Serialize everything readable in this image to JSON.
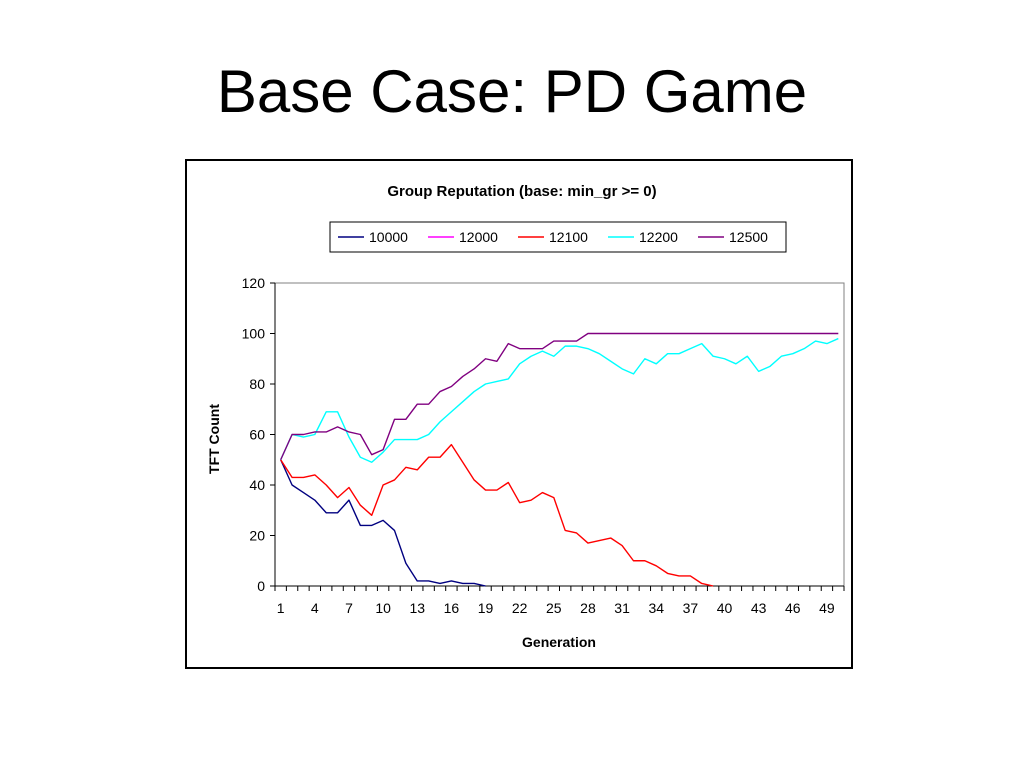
{
  "slide": {
    "title": "Base Case: PD Game"
  },
  "chart_data": {
    "type": "line",
    "title": "Group Reputation (base: min_gr >= 0)",
    "xlabel": "Generation",
    "ylabel": "TFT Count",
    "ylim": [
      0,
      120
    ],
    "yticks": [
      0,
      20,
      40,
      60,
      80,
      100,
      120
    ],
    "xlim": [
      1,
      50
    ],
    "xtick_labels": [
      "1",
      "4",
      "7",
      "10",
      "13",
      "16",
      "19",
      "22",
      "25",
      "28",
      "31",
      "34",
      "37",
      "40",
      "43",
      "46",
      "49"
    ],
    "legend_position": "top",
    "grid": false,
    "x": [
      1,
      2,
      3,
      4,
      5,
      6,
      7,
      8,
      9,
      10,
      11,
      12,
      13,
      14,
      15,
      16,
      17,
      18,
      19,
      20,
      21,
      22,
      23,
      24,
      25,
      26,
      27,
      28,
      29,
      30,
      31,
      32,
      33,
      34,
      35,
      36,
      37,
      38,
      39,
      40,
      41,
      42,
      43,
      44,
      45,
      46,
      47,
      48,
      49,
      50
    ],
    "series": [
      {
        "name": "10000",
        "color": "#000080",
        "values": [
          50,
          40,
          37,
          34,
          29,
          29,
          34,
          24,
          24,
          26,
          22,
          9,
          2,
          2,
          1,
          2,
          1,
          1,
          0,
          null,
          null,
          null,
          null,
          null,
          null,
          null,
          null,
          null,
          null,
          null,
          null,
          null,
          null,
          null,
          null,
          null,
          null,
          null,
          null,
          null,
          null,
          null,
          null,
          null,
          null,
          null,
          null,
          null,
          null,
          null
        ]
      },
      {
        "name": "12000",
        "color": "#FF00FF",
        "values": [
          50,
          null,
          null,
          null,
          null,
          null,
          null,
          null,
          null,
          null,
          null,
          null,
          null,
          null,
          null,
          null,
          null,
          null,
          null,
          null,
          null,
          null,
          null,
          null,
          null,
          null,
          null,
          null,
          null,
          null,
          null,
          null,
          null,
          null,
          null,
          null,
          null,
          null,
          null,
          null,
          null,
          null,
          null,
          null,
          null,
          null,
          null,
          null,
          null,
          null
        ]
      },
      {
        "name": "12100",
        "color": "#FF0000",
        "values": [
          50,
          43,
          43,
          44,
          40,
          35,
          39,
          32,
          28,
          40,
          42,
          47,
          46,
          51,
          51,
          56,
          49,
          42,
          38,
          38,
          41,
          33,
          34,
          37,
          35,
          22,
          21,
          17,
          18,
          19,
          16,
          10,
          10,
          8,
          5,
          4,
          4,
          1,
          0,
          null,
          null,
          null,
          null,
          null,
          null,
          null,
          null,
          null,
          null,
          null
        ]
      },
      {
        "name": "12200",
        "color": "#00FFFF",
        "values": [
          50,
          60,
          59,
          60,
          69,
          69,
          59,
          51,
          49,
          53,
          58,
          58,
          58,
          60,
          65,
          69,
          73,
          77,
          80,
          81,
          82,
          88,
          91,
          93,
          91,
          95,
          95,
          94,
          92,
          89,
          86,
          84,
          90,
          88,
          92,
          92,
          94,
          96,
          91,
          90,
          88,
          91,
          85,
          87,
          91,
          92,
          94,
          97,
          96,
          98
        ]
      },
      {
        "name": "12500",
        "color": "#800080",
        "values": [
          50,
          60,
          60,
          61,
          61,
          63,
          61,
          60,
          52,
          54,
          66,
          66,
          72,
          72,
          77,
          79,
          83,
          86,
          90,
          89,
          96,
          94,
          94,
          94,
          97,
          97,
          97,
          100,
          100,
          100,
          100,
          100,
          100,
          100,
          100,
          100,
          100,
          100,
          100,
          100,
          100,
          100,
          100,
          100,
          100,
          100,
          100,
          100,
          100,
          100
        ]
      }
    ]
  }
}
